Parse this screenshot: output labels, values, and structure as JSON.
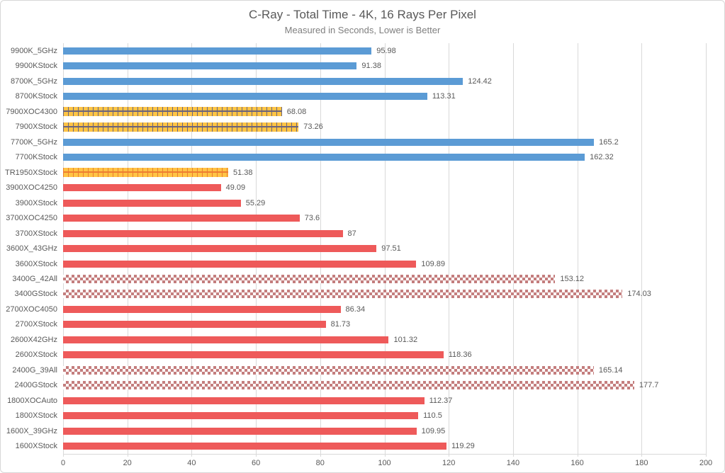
{
  "chart_data": {
    "type": "bar",
    "orientation": "horizontal",
    "title": "C-Ray - Total Time - 4K, 16 Rays Per Pixel",
    "subtitle": "Measured in Seconds, Lower is Better",
    "xlim": [
      0,
      200
    ],
    "xticks": [
      0,
      20,
      40,
      60,
      80,
      100,
      120,
      140,
      160,
      180,
      200
    ],
    "grid": true,
    "legend": "none",
    "value_labels": true,
    "bars": [
      {
        "label": "9900K_5GHz",
        "value": 95.98,
        "style": "blue-solid"
      },
      {
        "label": "9900KStock",
        "value": 91.38,
        "style": "blue-solid"
      },
      {
        "label": "8700K_5GHz",
        "value": 124.42,
        "style": "blue-solid"
      },
      {
        "label": "8700KStock",
        "value": 113.31,
        "style": "blue-solid"
      },
      {
        "label": "7900XOC4300",
        "value": 68.08,
        "style": "gold-dashed"
      },
      {
        "label": "7900XStock",
        "value": 73.26,
        "style": "gold-dashed"
      },
      {
        "label": "7700K_5GHz",
        "value": 165.2,
        "style": "blue-solid"
      },
      {
        "label": "7700KStock",
        "value": 162.32,
        "style": "blue-solid"
      },
      {
        "label": "TR1950XStock",
        "value": 51.38,
        "style": "gold-dashed-orange"
      },
      {
        "label": "3900XOC4250",
        "value": 49.09,
        "style": "red-solid"
      },
      {
        "label": "3900XStock",
        "value": 55.29,
        "style": "red-solid"
      },
      {
        "label": "3700XOC4250",
        "value": 73.6,
        "style": "red-solid"
      },
      {
        "label": "3700XStock",
        "value": 87,
        "style": "red-solid"
      },
      {
        "label": "3600X_43GHz",
        "value": 97.51,
        "style": "red-solid"
      },
      {
        "label": "3600XStock",
        "value": 109.89,
        "style": "red-solid"
      },
      {
        "label": "3400G_42All",
        "value": 153.12,
        "style": "red-checker"
      },
      {
        "label": "3400GStock",
        "value": 174.03,
        "style": "red-checker"
      },
      {
        "label": "2700XOC4050",
        "value": 86.34,
        "style": "red-solid"
      },
      {
        "label": "2700XStock",
        "value": 81.73,
        "style": "red-solid"
      },
      {
        "label": "2600X42GHz",
        "value": 101.32,
        "style": "red-solid"
      },
      {
        "label": "2600XStock",
        "value": 118.36,
        "style": "red-solid"
      },
      {
        "label": "2400G_39All",
        "value": 165.14,
        "style": "red-checker"
      },
      {
        "label": "2400GStock",
        "value": 177.7,
        "style": "red-checker"
      },
      {
        "label": "1800XOCAuto",
        "value": 112.37,
        "style": "red-solid"
      },
      {
        "label": "1800XStock",
        "value": 110.5,
        "style": "red-solid"
      },
      {
        "label": "1600X_39GHz",
        "value": 109.95,
        "style": "red-solid"
      },
      {
        "label": "1600XStock",
        "value": 119.29,
        "style": "red-solid"
      }
    ],
    "colors": {
      "blue": "#5B9BD5",
      "red": "#EE5A5A",
      "gold": "#FFC445",
      "gold_tick_dark": "#6B647C",
      "gold_tick_orange": "#ED7D31",
      "checker_red": "#C47E7E",
      "gridline": "#D9D9D9",
      "text": "#595959"
    }
  }
}
